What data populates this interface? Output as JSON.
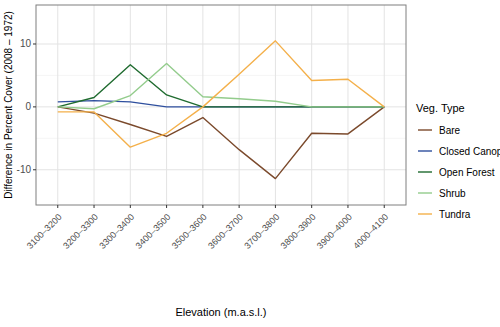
{
  "chart_data": {
    "type": "line",
    "x_label": "Elevation (m.a.s.l.)",
    "y_label": "Difference in Percent Cover (2008 – 1972)",
    "legend_title": "Veg. Type",
    "categories": [
      "3100–3200",
      "3200–3300",
      "3300–3400",
      "3400–3500",
      "3500–3600",
      "3600–3700",
      "3700–3800",
      "3800–3900",
      "3900–4000",
      "4000–4100"
    ],
    "series": [
      {
        "name": "Bare",
        "color": "#7b4a2c",
        "values": [
          0,
          -1,
          -2.8,
          -4.7,
          -1.7,
          -6.8,
          -11.4,
          -4.2,
          -4.3,
          0
        ]
      },
      {
        "name": "Closed Canopy",
        "color": "#2e4f9e",
        "values": [
          0.8,
          1.0,
          0.8,
          0,
          0,
          0,
          0,
          0,
          0,
          0
        ]
      },
      {
        "name": "Open Forest",
        "color": "#1f6b2f",
        "values": [
          0,
          1.5,
          6.7,
          1.9,
          0,
          0,
          0,
          0,
          0,
          0
        ]
      },
      {
        "name": "Shrub",
        "color": "#93cc8c",
        "values": [
          0,
          -0.3,
          1.8,
          6.9,
          1.6,
          1.3,
          0.9,
          0,
          0,
          0
        ]
      },
      {
        "name": "Tundra",
        "color": "#f4b04a",
        "values": [
          -0.8,
          -0.8,
          -6.4,
          -4.2,
          0,
          5.2,
          10.5,
          4.2,
          4.4,
          0
        ]
      }
    ],
    "ylim": [
      -15.6,
      16.2
    ],
    "yticks": [
      -10,
      0,
      10
    ],
    "grid": true,
    "legend": "right"
  }
}
